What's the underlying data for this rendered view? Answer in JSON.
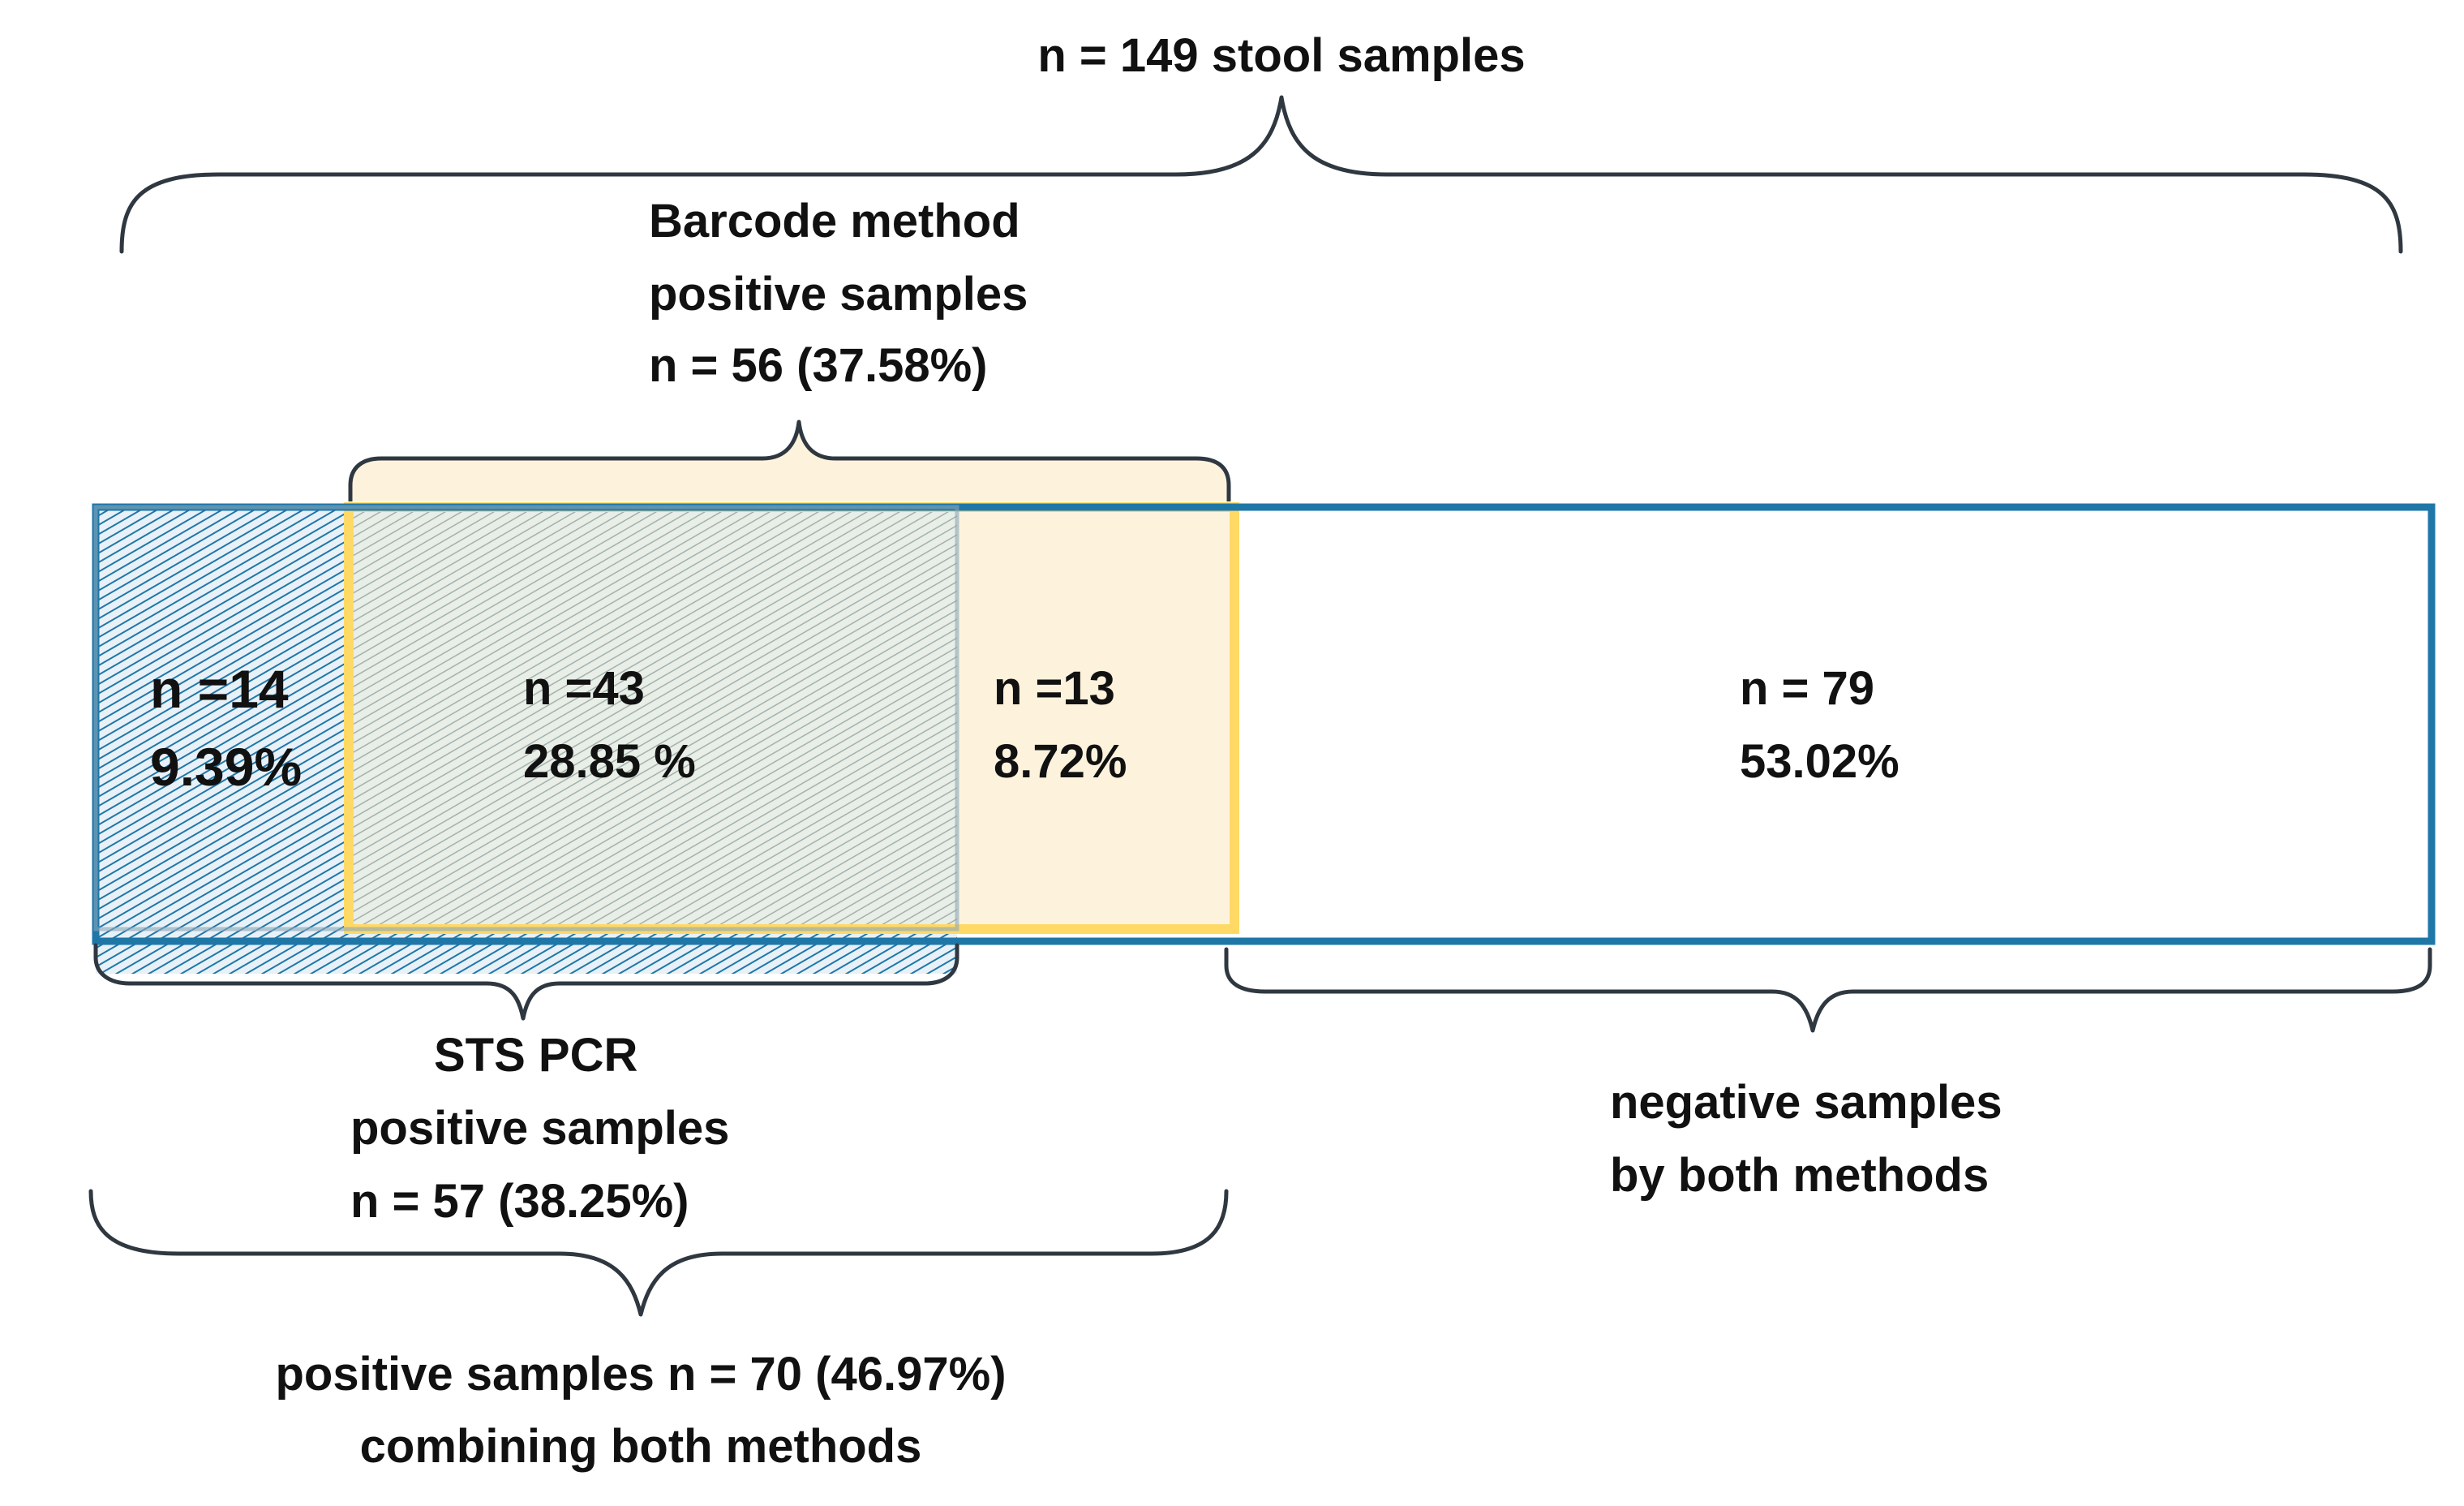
{
  "total": {
    "label": "n = 149 stool samples"
  },
  "barcode": {
    "line1": "Barcode method",
    "line2": "positive samples",
    "line3": "n = 56 (37.58%)"
  },
  "sts_pcr": {
    "line1": "STS PCR",
    "line2": "positive samples",
    "line3": "n = 57 (38.25%)"
  },
  "negative": {
    "line1": "negative samples",
    "line2": "by both methods"
  },
  "combined": {
    "line1": "positive samples n = 70 (46.97%)",
    "line2": "combining both methods"
  },
  "segments": [
    {
      "id": "sts-only",
      "n": "n =14",
      "pct": "9.39%",
      "count": 14
    },
    {
      "id": "both",
      "n": "n =43",
      "pct": "28.85 %",
      "count": 43
    },
    {
      "id": "barcode-only",
      "n": "n =13",
      "pct": "8.72%",
      "count": 13
    },
    {
      "id": "negative",
      "n": "n = 79",
      "pct": "53.02%",
      "count": 79
    }
  ],
  "colors": {
    "sts_blue": "#1f77a8",
    "barcode_yellow": "#ffd966",
    "barcode_fill": "#fdf3dc",
    "negative_border": "#1f77a8",
    "brace": "#2f3840"
  }
}
